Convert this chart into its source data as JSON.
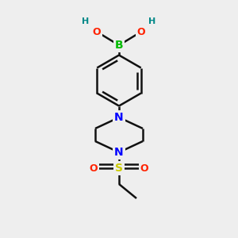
{
  "background_color": "#eeeeee",
  "atom_colors": {
    "B": "#00bb00",
    "O": "#ff2200",
    "N": "#0000ff",
    "S": "#cccc00",
    "C": "#111111",
    "H": "#008888"
  },
  "figsize": [
    3.0,
    3.0
  ],
  "dpi": 100
}
